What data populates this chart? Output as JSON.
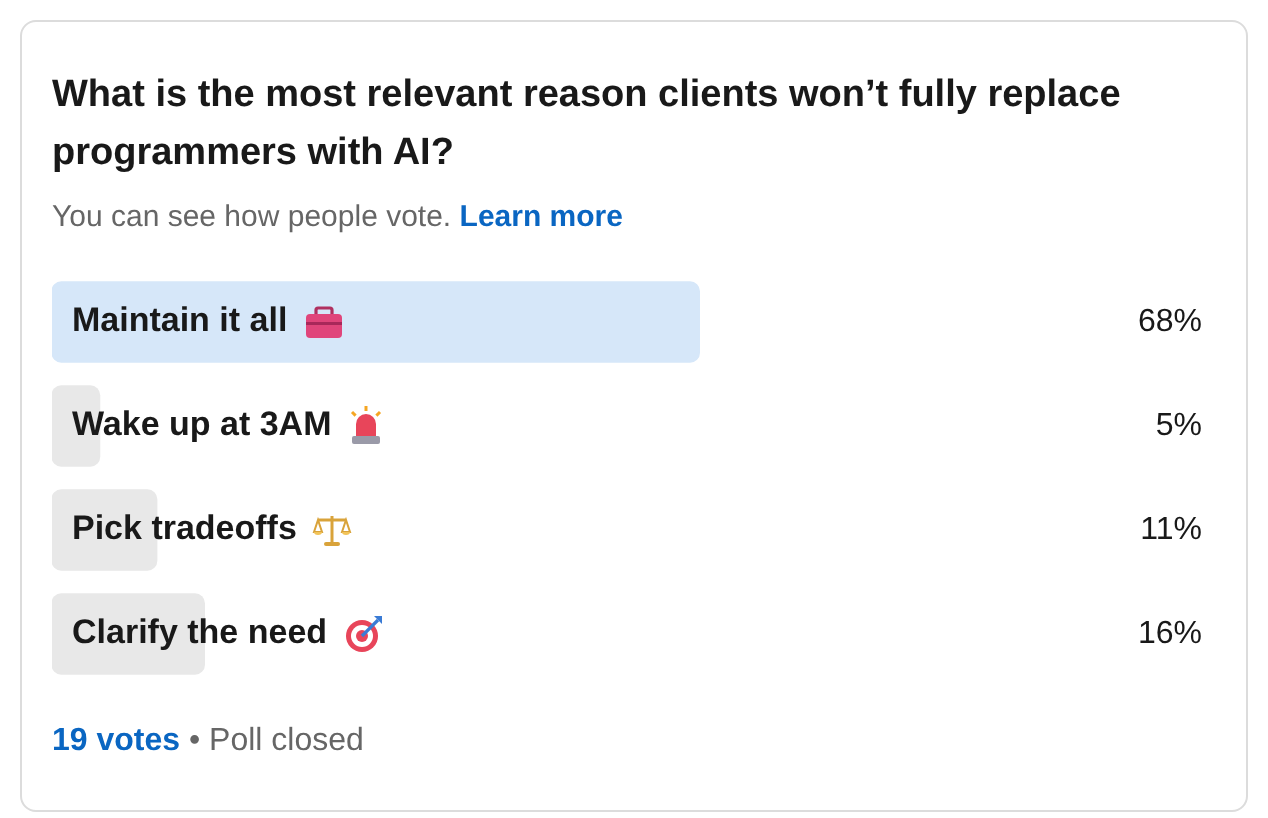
{
  "chart_data": {
    "type": "bar",
    "orientation": "horizontal",
    "title": "What is the most relevant reason clients won’t fully replace programmers with AI?",
    "subtitle": "You can see how people vote.",
    "categories": [
      "Maintain it all",
      "Wake up at 3AM",
      "Pick tradeoffs",
      "Clarify the need"
    ],
    "values": [
      68,
      5,
      11,
      16
    ],
    "colors": [
      "#d6e7f9",
      "#e8e8e8",
      "#e8e8e8",
      "#e8e8e8"
    ],
    "value_labels": [
      "68%",
      "5%",
      "11%",
      "16%"
    ],
    "annotations": [
      "Learn more",
      "19 votes",
      "• Poll closed"
    ]
  }
}
